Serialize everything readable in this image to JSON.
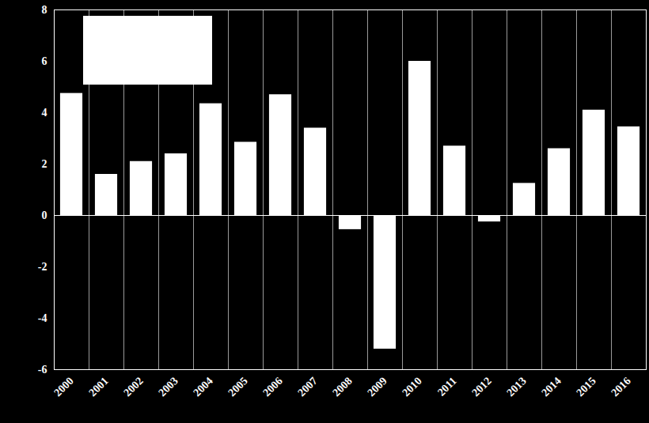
{
  "chart_data": {
    "type": "bar",
    "categories": [
      "2000",
      "2001",
      "2002",
      "2003",
      "2004",
      "2005",
      "2006",
      "2007",
      "2008",
      "2009",
      "2010",
      "2011",
      "2012",
      "2013",
      "2014",
      "2015",
      "2016"
    ],
    "values": [
      4.75,
      1.6,
      2.1,
      2.4,
      4.35,
      2.85,
      4.7,
      3.4,
      -0.55,
      -5.2,
      6.0,
      2.7,
      -0.25,
      1.25,
      2.6,
      4.1,
      3.45
    ],
    "color": "#ffffff",
    "ylim": [
      -6,
      8
    ],
    "yticks": [
      -6,
      -4,
      -2,
      0,
      2,
      4,
      6,
      8
    ],
    "grid": true
  }
}
